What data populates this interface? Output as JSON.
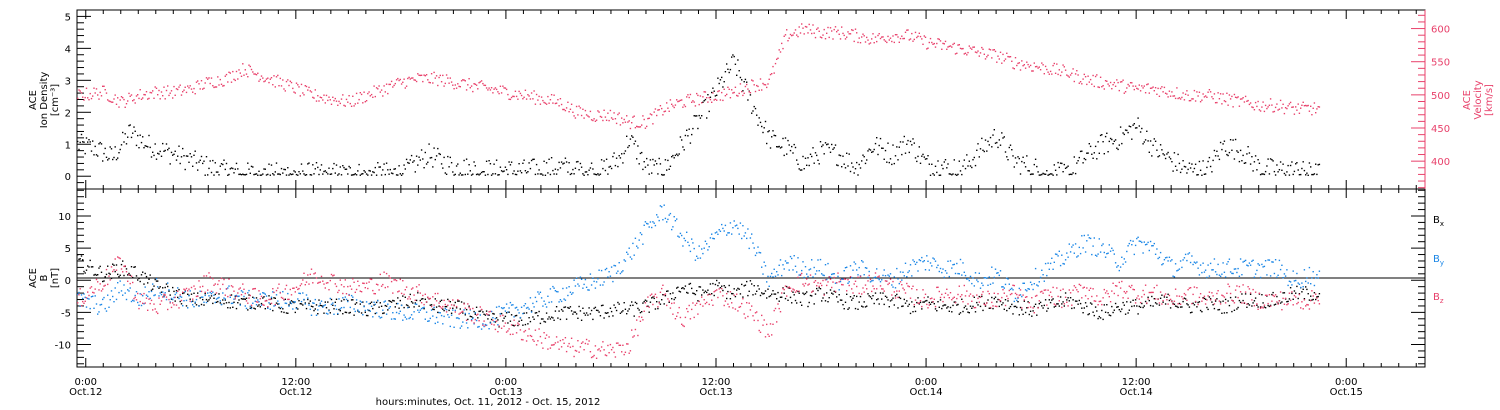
{
  "colors": {
    "density": "#000000",
    "velocity": "#e8416b",
    "bx": "#000000",
    "by": "#1a86e6",
    "bz": "#e8416b",
    "frame": "#000000"
  },
  "x_axis": {
    "label": "hours:minutes, Oct. 11, 2012 - Oct. 15, 2012",
    "range_hours": [
      -0.5,
      76.5
    ],
    "ticks": [
      {
        "h": 0,
        "time": "0:00",
        "date": "Oct.12"
      },
      {
        "h": 12,
        "time": "12:00",
        "date": "Oct.12"
      },
      {
        "h": 24,
        "time": "0:00",
        "date": "Oct.13"
      },
      {
        "h": 36,
        "time": "12:00",
        "date": "Oct.13"
      },
      {
        "h": 48,
        "time": "0:00",
        "date": "Oct.14"
      },
      {
        "h": 60,
        "time": "12:00",
        "date": "Oct.14"
      },
      {
        "h": 72,
        "time": "0:00",
        "date": "Oct.15"
      }
    ]
  },
  "top_panel": {
    "left_label": [
      "ACE",
      "Ion Density",
      "[cm⁻³]"
    ],
    "right_label": [
      "ACE",
      "Velocity",
      "[km/s]"
    ]
  },
  "bottom_panel": {
    "left_label": [
      "ACE",
      "B",
      "[nT]"
    ],
    "legend": [
      {
        "key": "bx",
        "text": "B",
        "sub": "x"
      },
      {
        "key": "by",
        "text": "B",
        "sub": "y"
      },
      {
        "key": "bz",
        "text": "B",
        "sub": "z"
      }
    ]
  },
  "chart_data": [
    {
      "type": "scatter",
      "panel": "top",
      "x_unit": "hours since 00:00 Oct. 12, 2012",
      "y_left": {
        "label": "Ion Density [cm⁻³]",
        "range": [
          -0.4,
          5.2
        ],
        "ticks": [
          0,
          1,
          2,
          3,
          4,
          5
        ]
      },
      "y_right": {
        "label": "Velocity [km/s]",
        "range": [
          358,
          628
        ],
        "ticks": [
          400,
          450,
          500,
          550,
          600
        ]
      },
      "series": [
        {
          "key": "density",
          "axis": "left",
          "x": [
            -0.5,
            0.5,
            1.5,
            2.5,
            3.5,
            4.5,
            5.5,
            6.5,
            7.5,
            9,
            11,
            12.5,
            14,
            16,
            18,
            19.5,
            21,
            23,
            25,
            27,
            29.5,
            30.5,
            31,
            32,
            33,
            34,
            35,
            36,
            37,
            38,
            39,
            40,
            41,
            42,
            43,
            44,
            45,
            46,
            47,
            48,
            49,
            50,
            51,
            52,
            53,
            54,
            55,
            56,
            57,
            58,
            59,
            60,
            61,
            62,
            63,
            64,
            65,
            66,
            67,
            68,
            69,
            70,
            70.5
          ],
          "y": [
            1.0,
            0.9,
            0.6,
            1.4,
            1.0,
            0.8,
            0.6,
            0.4,
            0.2,
            0.1,
            0.1,
            0.1,
            0.1,
            0.1,
            0.1,
            0.7,
            0.3,
            0.2,
            0.2,
            0.3,
            0.2,
            0.6,
            1.2,
            0.3,
            0.2,
            1.0,
            1.8,
            2.7,
            3.6,
            2.3,
            1.2,
            0.9,
            0.4,
            0.8,
            0.7,
            0.3,
            1.0,
            0.7,
            1.1,
            0.4,
            0.3,
            0.2,
            0.8,
            1.3,
            0.5,
            0.3,
            0.1,
            0.1,
            0.6,
            1.0,
            1.2,
            1.6,
            0.9,
            0.5,
            0.2,
            0.2,
            1.0,
            0.8,
            0.3,
            0.2,
            0.2,
            0.1,
            0.1
          ]
        },
        {
          "key": "velocity",
          "axis": "right",
          "x": [
            -0.5,
            1,
            2,
            3,
            4,
            5,
            6,
            7,
            8,
            9,
            10,
            11,
            12,
            13,
            14,
            15,
            16,
            17,
            18,
            19,
            20,
            21,
            22,
            23,
            24,
            25,
            26,
            27,
            28,
            29,
            30,
            31,
            32,
            33,
            34,
            35,
            36,
            37,
            38,
            39,
            40,
            41,
            42,
            43,
            44,
            45,
            46,
            47,
            48,
            49,
            50,
            51,
            52,
            53,
            54,
            55,
            56,
            57,
            58,
            59,
            60,
            61,
            62,
            63,
            64,
            65,
            66,
            67,
            68,
            69,
            70,
            70.5
          ],
          "y": [
            500,
            505,
            490,
            500,
            505,
            505,
            510,
            520,
            525,
            540,
            530,
            520,
            510,
            500,
            495,
            490,
            500,
            510,
            520,
            525,
            525,
            520,
            515,
            510,
            505,
            500,
            495,
            490,
            475,
            470,
            470,
            460,
            460,
            480,
            490,
            495,
            500,
            505,
            515,
            520,
            590,
            600,
            595,
            595,
            590,
            585,
            590,
            590,
            580,
            575,
            570,
            565,
            560,
            550,
            545,
            540,
            535,
            525,
            520,
            515,
            510,
            510,
            505,
            500,
            500,
            495,
            490,
            485,
            485,
            480,
            480,
            480
          ]
        }
      ]
    },
    {
      "type": "scatter",
      "panel": "bottom",
      "x_unit": "hours since 00:00 Oct. 12, 2012",
      "y_left": {
        "label": "B [nT]",
        "range": [
          -13.5,
          14.2
        ],
        "ticks": [
          -10,
          -5,
          0,
          5,
          10
        ]
      },
      "series": [
        {
          "key": "bx",
          "name": "Bx",
          "x": [
            -0.5,
            1,
            2,
            3,
            4,
            5,
            6,
            7,
            8,
            9,
            10,
            11,
            12,
            13,
            14,
            15,
            16,
            17,
            18,
            19,
            20,
            21,
            22,
            23,
            24,
            25,
            26,
            27,
            28,
            29,
            30,
            31,
            32,
            33,
            34,
            35,
            36,
            37,
            38,
            39,
            40,
            41,
            42,
            43,
            44,
            45,
            46,
            47,
            48,
            49,
            50,
            51,
            52,
            53,
            54,
            55,
            56,
            57,
            58,
            59,
            60,
            61,
            62,
            63,
            64,
            65,
            66,
            67,
            68,
            69,
            70,
            70.5
          ],
          "y": [
            3,
            1,
            2,
            1,
            -1,
            -2,
            -3,
            -3,
            -3,
            -3.5,
            -3,
            -4,
            -4,
            -4,
            -4,
            -4,
            -4.5,
            -4,
            -3.5,
            -3,
            -4,
            -4,
            -5,
            -6,
            -6,
            -6,
            -5.5,
            -5,
            -5,
            -5,
            -4.5,
            -4.5,
            -4,
            -3,
            -1,
            -2,
            -1,
            -2,
            -1,
            -2,
            -2,
            -3,
            -2,
            -3,
            -3.5,
            -3,
            -3,
            -4,
            -3.5,
            -4,
            -4,
            -3.5,
            -3,
            -4,
            -4.5,
            -4,
            -3,
            -4,
            -5,
            -4,
            -4,
            -3.5,
            -3,
            -4,
            -3.5,
            -4,
            -3,
            -3,
            -3,
            -2,
            -2,
            -2
          ]
        },
        {
          "key": "by",
          "name": "By",
          "x": [
            -0.5,
            1,
            2,
            3,
            4,
            5,
            6,
            7,
            8,
            9,
            10,
            11,
            12,
            13,
            14,
            15,
            16,
            17,
            18,
            19,
            20,
            21,
            22,
            23,
            24,
            25,
            26,
            27,
            28,
            29,
            30,
            31,
            32,
            33,
            34,
            35,
            36,
            37,
            38,
            39,
            40,
            41,
            42,
            43,
            44,
            45,
            46,
            47,
            48,
            49,
            50,
            51,
            52,
            53,
            54,
            55,
            56,
            57,
            58,
            59,
            60,
            61,
            62,
            63,
            64,
            65,
            66,
            67,
            68,
            69,
            70,
            70.5
          ],
          "y": [
            -3,
            -4,
            -1,
            -3,
            -1,
            -2,
            -3,
            -3,
            -2,
            -3,
            -3,
            -3,
            -3,
            -4,
            -4,
            -3.5,
            -4,
            -4.5,
            -5,
            -5,
            -5.5,
            -6,
            -6,
            -6,
            -5,
            -4,
            -3,
            -2,
            -1,
            0,
            1,
            4,
            8,
            11,
            7,
            4,
            7,
            9,
            6,
            0,
            3,
            2,
            2,
            0,
            2,
            1,
            0,
            2,
            3,
            2,
            2,
            0,
            1,
            -2,
            0,
            2,
            4,
            6,
            5,
            3,
            6,
            5,
            2,
            3,
            2,
            2,
            2,
            2,
            2,
            0,
            1,
            0
          ]
        },
        {
          "key": "bz",
          "name": "Bz",
          "x": [
            -0.5,
            1,
            2,
            3,
            4,
            5,
            6,
            7,
            8,
            9,
            10,
            11,
            12,
            13,
            14,
            15,
            16,
            17,
            18,
            19,
            20,
            21,
            22,
            23,
            24,
            25,
            26,
            27,
            28,
            29,
            30,
            31,
            32,
            33,
            34,
            35,
            36,
            37,
            38,
            39,
            40,
            41,
            42,
            43,
            44,
            45,
            46,
            47,
            48,
            49,
            50,
            51,
            52,
            53,
            54,
            55,
            56,
            57,
            58,
            59,
            60,
            61,
            62,
            63,
            64,
            65,
            66,
            67,
            68,
            69,
            70,
            70.5
          ],
          "y": [
            -3,
            0,
            3,
            -3,
            -4,
            -3,
            -2,
            0,
            -1,
            -2,
            -3,
            -2,
            -1,
            1,
            0,
            -1,
            -1,
            0,
            -1,
            -2,
            -3,
            -4,
            -5,
            -6,
            -7,
            -8,
            -9,
            -10,
            -10.5,
            -10.5,
            -11,
            -10,
            -4,
            -2,
            -6,
            -4,
            -2,
            -3,
            -5,
            -8,
            -1,
            0,
            -1,
            0,
            -1,
            0,
            -1,
            -2,
            -3,
            -2,
            -2,
            -3,
            -3,
            -2,
            -4,
            -2,
            -3,
            -1,
            -3,
            -1,
            -2,
            -2,
            -3,
            -2,
            -3,
            -2,
            -2,
            -3,
            -3,
            -3,
            -3,
            -2
          ]
        }
      ]
    }
  ]
}
